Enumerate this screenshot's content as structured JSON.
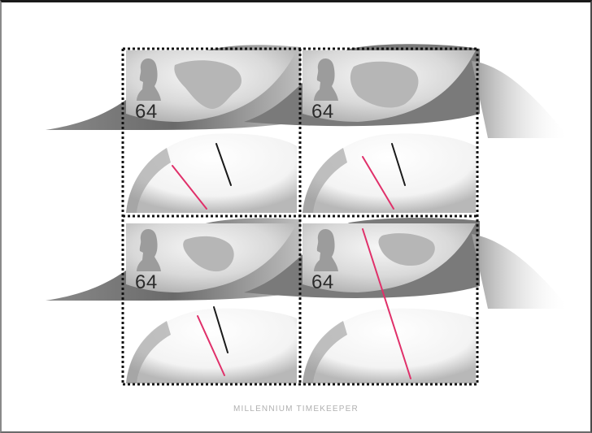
{
  "sheet": {
    "title": "MILLENNIUM TIMEKEEPER",
    "colors": {
      "paper": "#ffffff",
      "ribbon": "#6e6e6e",
      "hand_black": "#1a1a1a",
      "hand_red": "#e0306a"
    }
  },
  "stamps": [
    {
      "value": "64",
      "map": "north-america"
    },
    {
      "value": "64",
      "map": "asia"
    },
    {
      "value": "64",
      "map": "middle-east-africa"
    },
    {
      "value": "64",
      "map": "europe"
    }
  ]
}
